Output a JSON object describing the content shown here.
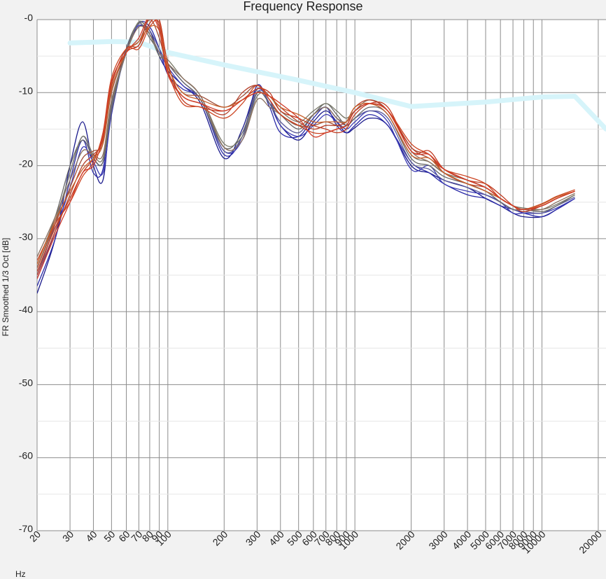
{
  "chart_data": {
    "type": "line",
    "title": "Frequency Response",
    "ylabel": "FR Smoothed 1/3 Oct [dB]",
    "xunit": "Hz",
    "x_scale": "log",
    "xlim": [
      20,
      22000
    ],
    "ylim": [
      -70,
      0
    ],
    "y_ticks": [
      0,
      -10,
      -20,
      -30,
      -40,
      -50,
      -60,
      -70
    ],
    "y_tick_labels": [
      "-0",
      "-10",
      "-20",
      "-30",
      "-40",
      "-50",
      "-60",
      "-70"
    ],
    "x_ticks": [
      20,
      30,
      40,
      50,
      60,
      70,
      80,
      90,
      100,
      200,
      300,
      400,
      500,
      600,
      700,
      800,
      900,
      1000,
      2000,
      3000,
      4000,
      5000,
      6000,
      7000,
      8000,
      9000,
      10000,
      20000
    ],
    "x_tick_labels": [
      "20",
      "30",
      "40",
      "50",
      "60",
      "70",
      "80",
      "90",
      "100",
      "200",
      "300",
      "400",
      "500",
      "600",
      "700",
      "800",
      "900",
      "1000",
      "2000",
      "3000",
      "4000",
      "5000",
      "6000",
      "7000",
      "8000",
      "9000",
      "10000",
      "20000"
    ],
    "grid": true,
    "target": {
      "color": "#d6f4fa",
      "x": [
        30,
        50,
        70,
        100,
        200,
        500,
        1000,
        2000,
        5000,
        10000,
        15000,
        22000
      ],
      "y": [
        -3.2,
        -3.0,
        -3.1,
        -4.5,
        -6.2,
        -8.3,
        -10.0,
        -11.9,
        -11.3,
        -10.6,
        -10.5,
        -15.0
      ]
    },
    "x": [
      20,
      25,
      30,
      35,
      40,
      45,
      50,
      60,
      70,
      80,
      90,
      100,
      120,
      150,
      200,
      250,
      300,
      350,
      400,
      500,
      600,
      700,
      800,
      900,
      1000,
      1200,
      1500,
      2000,
      2500,
      3000,
      4000,
      5000,
      6000,
      7000,
      8000,
      10000,
      12000,
      15000
    ],
    "series": [
      {
        "color": "#1a1a8c",
        "values": [
          -37.5,
          -30,
          -20,
          -14,
          -20,
          -22,
          -12,
          -4,
          -1,
          -1.5,
          -5,
          -7,
          -9,
          -11.5,
          -19,
          -15,
          -9.5,
          -11.5,
          -14.5,
          -16.5,
          -14,
          -12.5,
          -14,
          -15.5,
          -14.8,
          -13.5,
          -14.5,
          -20,
          -21,
          -22,
          -23,
          -24.5,
          -25.5,
          -26.5,
          -27,
          -27,
          -26,
          -24.5
        ]
      },
      {
        "color": "#2b2ba8",
        "values": [
          -36.5,
          -30,
          -22,
          -16.5,
          -21,
          -20.5,
          -11.5,
          -4.5,
          -0.5,
          -1,
          -4,
          -7.5,
          -9.5,
          -11,
          -18.5,
          -16,
          -9,
          -12,
          -15.5,
          -16,
          -13.5,
          -12,
          -14.5,
          -15.5,
          -14.5,
          -13,
          -14.5,
          -19.5,
          -21,
          -22.5,
          -24,
          -24.5,
          -25.5,
          -26,
          -26.5,
          -27,
          -26,
          -24.5
        ]
      },
      {
        "color": "#3c3cb4",
        "values": [
          -35.5,
          -29,
          -23,
          -17.5,
          -19.5,
          -21,
          -13,
          -4,
          -0.8,
          -2,
          -4.5,
          -6.5,
          -9,
          -11,
          -18,
          -16.5,
          -10,
          -11,
          -14.5,
          -16,
          -14.5,
          -13,
          -14,
          -15,
          -14,
          -12.5,
          -14,
          -20.5,
          -20,
          -22.5,
          -23.5,
          -24,
          -25,
          -26.5,
          -26.5,
          -26.5,
          -25.8,
          -24.5
        ]
      },
      {
        "color": "#5a5a9a",
        "values": [
          -35,
          -28,
          -21,
          -16,
          -19,
          -19.5,
          -12,
          -4.5,
          -0.5,
          -1.5,
          -4,
          -6,
          -8.5,
          -11,
          -18,
          -16,
          -9.5,
          -11.5,
          -14,
          -15.5,
          -13,
          -12,
          -13.5,
          -14.5,
          -13.5,
          -12.5,
          -13.5,
          -19.5,
          -20.5,
          -22,
          -23,
          -24,
          -25,
          -26,
          -26.3,
          -26.5,
          -25.5,
          -24.3
        ]
      },
      {
        "color": "#666666",
        "values": [
          -33.5,
          -27,
          -20,
          -16.5,
          -19,
          -19.5,
          -12.5,
          -4,
          -0.5,
          -2.5,
          -4.5,
          -6,
          -8.5,
          -11,
          -17.5,
          -15.5,
          -10,
          -11.5,
          -13,
          -15,
          -13,
          -11.5,
          -13,
          -14.5,
          -13.5,
          -12,
          -13,
          -19,
          -20,
          -21.5,
          -22.5,
          -23.5,
          -25,
          -26,
          -26,
          -26.3,
          -25.5,
          -24
        ]
      },
      {
        "color": "#7a7a6a",
        "values": [
          -34,
          -27.5,
          -21,
          -16,
          -18.5,
          -19,
          -11.5,
          -4.5,
          -0.3,
          -2,
          -5,
          -5.5,
          -8,
          -10.5,
          -17,
          -16,
          -10.5,
          -10.5,
          -12.5,
          -14,
          -12.5,
          -11.5,
          -12.5,
          -13.5,
          -12.5,
          -11.5,
          -13,
          -18.5,
          -19.5,
          -21,
          -22.5,
          -23.5,
          -24.5,
          -25.5,
          -25.8,
          -26,
          -25.3,
          -24
        ]
      },
      {
        "color": "#8a7060",
        "values": [
          -32.5,
          -27,
          -22,
          -18,
          -18.5,
          -18.5,
          -11,
          -4.5,
          -1,
          -2,
          -4.5,
          -6,
          -8,
          -10.5,
          -17.5,
          -16.5,
          -11,
          -12,
          -13,
          -14.5,
          -13,
          -12,
          -13.5,
          -14,
          -12.5,
          -11,
          -12.5,
          -18,
          -19.5,
          -21,
          -22,
          -23,
          -24.5,
          -25.5,
          -26,
          -26,
          -25,
          -23.8
        ]
      },
      {
        "color": "#a0503a",
        "values": [
          -34,
          -28,
          -23,
          -19,
          -18,
          -17,
          -10,
          -4.5,
          -3,
          0,
          -2.5,
          -6.5,
          -10,
          -10.5,
          -12,
          -10.5,
          -9,
          -11,
          -13,
          -14.5,
          -14.5,
          -14,
          -14.5,
          -14.5,
          -12.5,
          -11.5,
          -12.5,
          -17.5,
          -19,
          -20.5,
          -22,
          -23,
          -24.5,
          -25.5,
          -26,
          -25.5,
          -24.5,
          -23.5
        ]
      },
      {
        "color": "#b5402a",
        "values": [
          -35,
          -29,
          -24,
          -20,
          -18.5,
          -16.5,
          -9,
          -4,
          -3.5,
          0.5,
          -1,
          -7,
          -10.5,
          -11.5,
          -13,
          -10,
          -9,
          -10.5,
          -12,
          -14,
          -15,
          -14.5,
          -14.5,
          -14,
          -12,
          -11,
          -12.5,
          -17.5,
          -18.5,
          -21,
          -22.5,
          -23,
          -24.5,
          -25.5,
          -26,
          -25.5,
          -24.5,
          -23.5
        ]
      },
      {
        "color": "#c03a20",
        "values": [
          -34.5,
          -28.5,
          -24.5,
          -21,
          -19,
          -16,
          -8.5,
          -4.5,
          -3.5,
          -0.5,
          0,
          -6,
          -11,
          -12,
          -12.5,
          -11,
          -9.5,
          -10,
          -12.5,
          -13.5,
          -14.5,
          -15,
          -15.5,
          -15,
          -13,
          -11.5,
          -12,
          -18,
          -18,
          -20.5,
          -22,
          -22.5,
          -24,
          -25.5,
          -26.3,
          -25.5,
          -24.5,
          -23.5
        ]
      },
      {
        "color": "#cc4422",
        "values": [
          -33,
          -28,
          -25,
          -21.5,
          -19.5,
          -15.5,
          -8,
          -4,
          -4,
          -1,
          -0.5,
          -7,
          -11.5,
          -12,
          -13.5,
          -11.5,
          -9,
          -11,
          -13,
          -14.5,
          -15.5,
          -15.5,
          -15,
          -14.5,
          -12.5,
          -11.5,
          -12.5,
          -17,
          -18.5,
          -20.5,
          -21.5,
          -22.5,
          -24.5,
          -25.5,
          -26,
          -25.2,
          -24.2,
          -23.3
        ]
      },
      {
        "color": "#c8602a",
        "values": [
          -33.5,
          -27.5,
          -23.5,
          -20.5,
          -19,
          -17,
          -9.5,
          -4.5,
          -3,
          -1,
          -1.5,
          -6.5,
          -10,
          -11,
          -12,
          -11,
          -10,
          -10.5,
          -12,
          -13,
          -14,
          -14,
          -14,
          -14,
          -12,
          -11.5,
          -13,
          -18.5,
          -19,
          -21,
          -22.5,
          -23.5,
          -24.5,
          -25.5,
          -26,
          -25.3,
          -24.3,
          -23.5
        ]
      },
      {
        "color": "#d23c28",
        "values": [
          -35.5,
          -29.5,
          -25,
          -21,
          -20,
          -16,
          -8.5,
          -4.5,
          -2.5,
          0.5,
          -1.5,
          -7.5,
          -10.5,
          -11.5,
          -12.5,
          -11,
          -10,
          -10.5,
          -11.5,
          -13.5,
          -16,
          -15.5,
          -15,
          -14.5,
          -12.5,
          -11.5,
          -12.5,
          -18,
          -18.5,
          -20.5,
          -22,
          -23,
          -24.5,
          -25.5,
          -26,
          -25.5,
          -24.5,
          -23.5
        ]
      }
    ]
  }
}
